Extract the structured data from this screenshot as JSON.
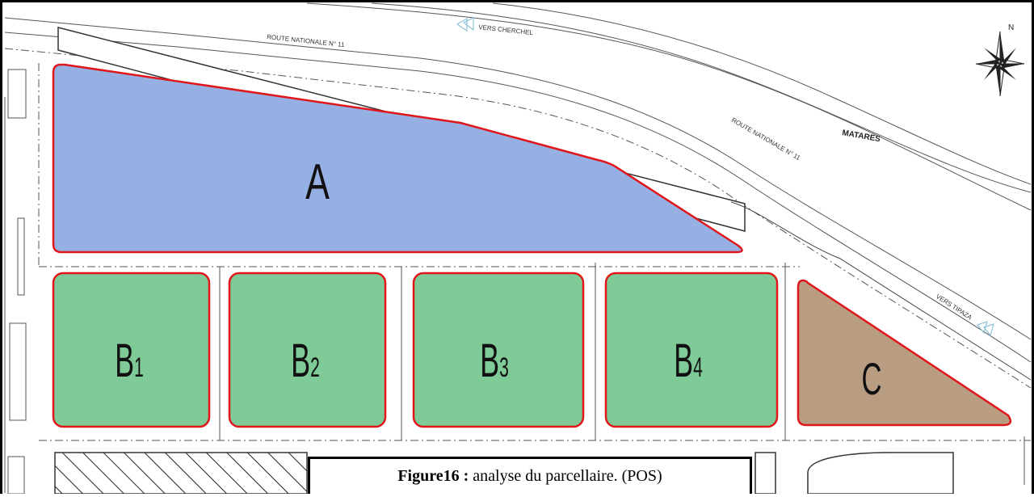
{
  "map": {
    "north_label": "N",
    "road_labels": {
      "rn11_top": "ROUTE NATIONALE N° 11",
      "rn11_right": "ROUTE NATIONALE N° 11",
      "to_cherchel": "VERS CHERCHEL",
      "to_tipaza": "VERS TIPAZA",
      "place": "MATARES"
    },
    "parcels": [
      {
        "id": "A",
        "label": "A",
        "sub": "",
        "color": "#97b0e3"
      },
      {
        "id": "B1",
        "label": "B",
        "sub": "1",
        "color": "#7fcb98"
      },
      {
        "id": "B2",
        "label": "B",
        "sub": "2",
        "color": "#7fcb98"
      },
      {
        "id": "B3",
        "label": "B",
        "sub": "3",
        "color": "#7fcb98"
      },
      {
        "id": "B4",
        "label": "B",
        "sub": "4",
        "color": "#7fcb98"
      },
      {
        "id": "C",
        "label": "C",
        "sub": "",
        "color": "#b99d82"
      }
    ],
    "outline_color": "#e0161b"
  },
  "caption": {
    "bold": "Figure16 :",
    "text": " analyse du parcellaire. (POS)"
  }
}
